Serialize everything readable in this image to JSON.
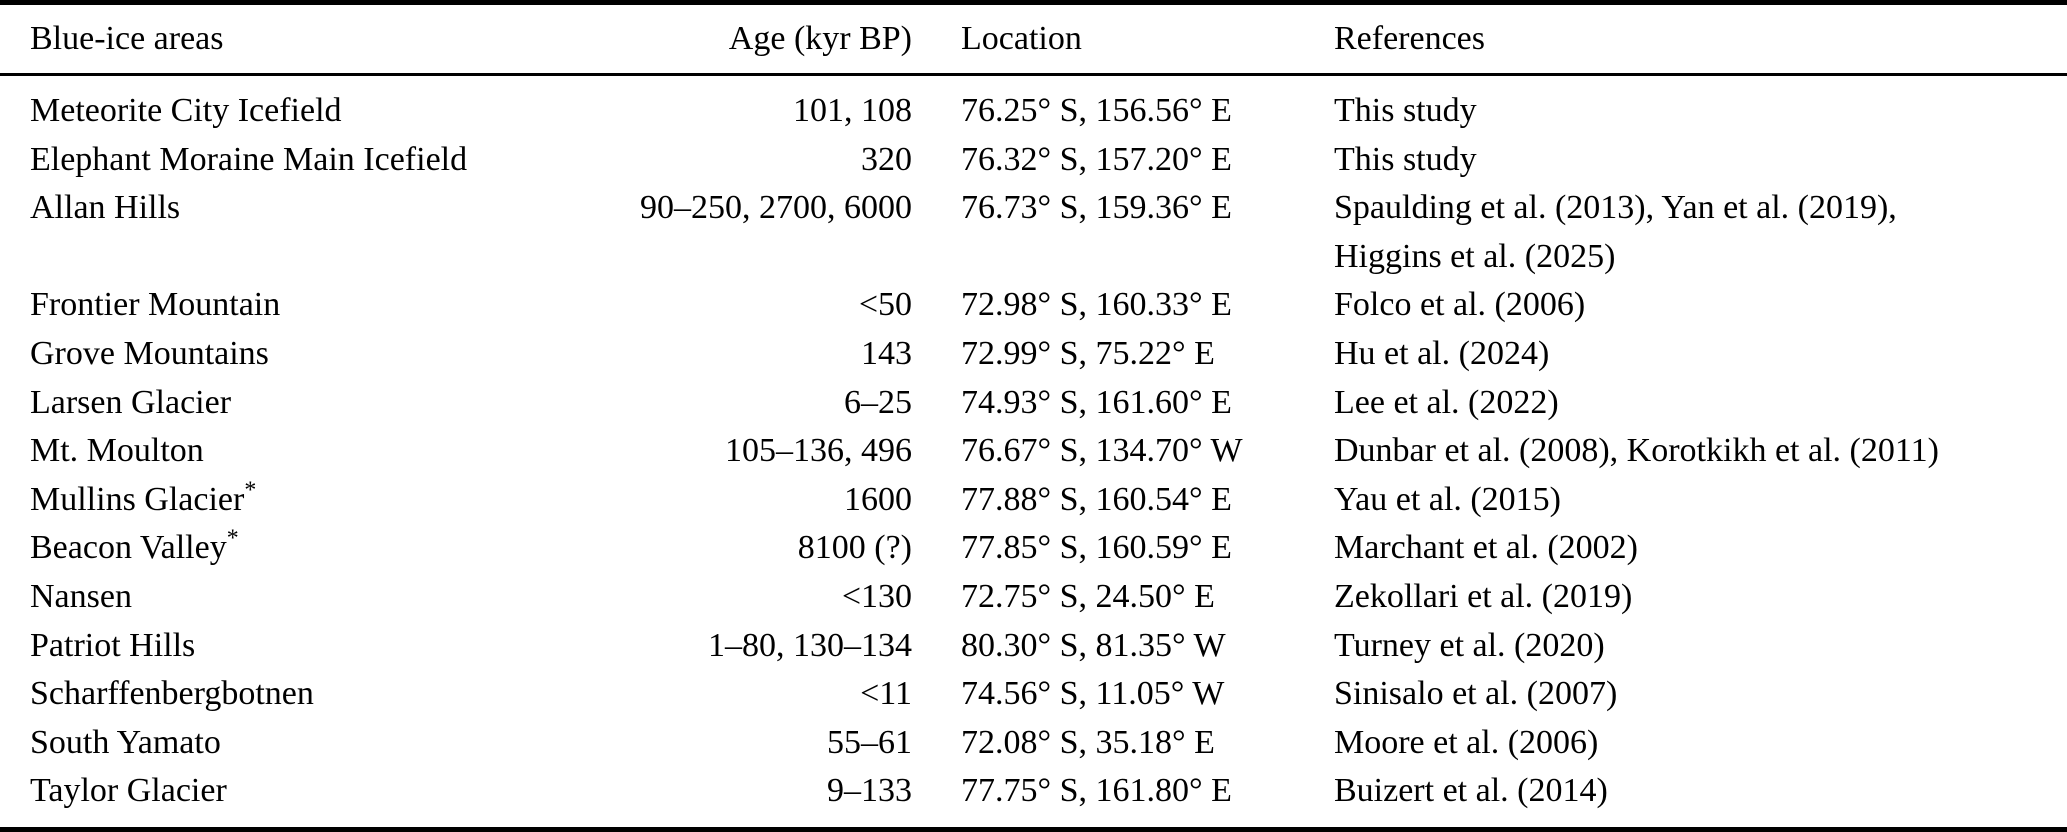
{
  "table": {
    "columns": [
      {
        "key": "area",
        "label": "Blue-ice areas"
      },
      {
        "key": "age",
        "label": "Age (kyr BP)"
      },
      {
        "key": "location",
        "label": "Location"
      },
      {
        "key": "references",
        "label": "References"
      }
    ],
    "rows": [
      {
        "area": "Meteorite City Icefield",
        "note": "",
        "age": "101, 108",
        "location": "76.25° S, 156.56° E",
        "references": [
          "This study"
        ]
      },
      {
        "area": "Elephant Moraine Main Icefield",
        "note": "",
        "age": "320",
        "location": "76.32° S, 157.20° E",
        "references": [
          "This study"
        ]
      },
      {
        "area": "Allan Hills",
        "note": "",
        "age": "90–250, 2700, 6000",
        "location": "76.73° S, 159.36° E",
        "references": [
          "Spaulding et al. (2013), Yan et al. (2019),",
          "Higgins et al. (2025)"
        ]
      },
      {
        "area": "Frontier Mountain",
        "note": "",
        "age": "<50",
        "location": "72.98° S, 160.33° E",
        "references": [
          "Folco et al. (2006)"
        ]
      },
      {
        "area": "Grove Mountains",
        "note": "",
        "age": "143",
        "location": "72.99° S, 75.22° E",
        "references": [
          "Hu et al. (2024)"
        ]
      },
      {
        "area": "Larsen Glacier",
        "note": "",
        "age": "6–25",
        "location": "74.93° S, 161.60° E",
        "references": [
          "Lee et al. (2022)"
        ]
      },
      {
        "area": "Mt. Moulton",
        "note": "",
        "age": "105–136, 496",
        "location": "76.67° S, 134.70° W",
        "references": [
          "Dunbar et al. (2008), Korotkikh et al. (2011)"
        ]
      },
      {
        "area": "Mullins Glacier",
        "note": "*",
        "age": "1600",
        "location": "77.88° S, 160.54° E",
        "references": [
          "Yau et al. (2015)"
        ]
      },
      {
        "area": "Beacon Valley",
        "note": "*",
        "age": "8100 (?)",
        "location": "77.85° S, 160.59° E",
        "references": [
          "Marchant et al. (2002)"
        ]
      },
      {
        "area": "Nansen",
        "note": "",
        "age": "<130",
        "location": "72.75° S, 24.50° E",
        "references": [
          "Zekollari et al. (2019)"
        ]
      },
      {
        "area": "Patriot Hills",
        "note": "",
        "age": "1–80, 130–134",
        "location": "80.30° S, 81.35° W",
        "references": [
          "Turney et al. (2020)"
        ]
      },
      {
        "area": "Scharffenbergbotnen",
        "note": "",
        "age": "<11",
        "location": "74.56° S, 11.05° W",
        "references": [
          "Sinisalo et al. (2007)"
        ]
      },
      {
        "area": "South Yamato",
        "note": "",
        "age": "55–61",
        "location": "72.08° S, 35.18° E",
        "references": [
          "Moore et al. (2006)"
        ]
      },
      {
        "area": "Taylor Glacier",
        "note": "",
        "age": "9–133",
        "location": "77.75° S, 161.80° E",
        "references": [
          "Buizert et al. (2014)"
        ]
      }
    ]
  }
}
